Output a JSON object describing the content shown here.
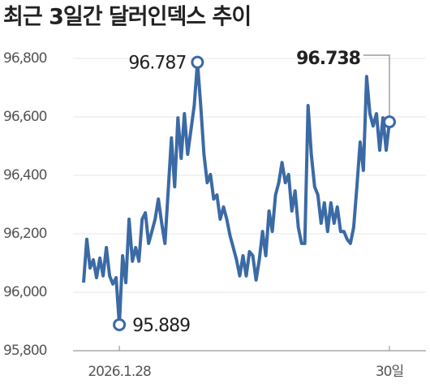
{
  "chart_data": {
    "type": "line",
    "title": "최근 3일간 달러인덱스 추이",
    "categories": [
      null,
      null,
      null,
      null,
      null,
      null,
      null,
      null,
      null,
      null,
      null,
      "2026.1.28",
      null,
      null,
      null,
      null,
      null,
      null,
      null,
      null,
      null,
      null,
      null,
      null,
      null,
      null,
      null,
      null,
      null,
      null,
      null,
      null,
      null,
      null,
      null,
      null,
      null,
      null,
      null,
      null,
      null,
      null,
      null,
      null,
      null,
      null,
      null,
      null,
      null,
      null,
      null,
      null,
      null,
      null,
      null,
      null,
      null,
      null,
      null,
      null,
      null,
      null,
      null,
      null,
      null,
      null,
      null,
      null,
      null,
      null,
      null,
      null,
      null,
      null,
      null,
      null,
      null,
      null,
      null,
      null,
      null,
      null,
      null,
      null,
      null,
      null,
      null,
      null,
      null,
      null,
      null,
      null,
      null,
      null,
      "30일"
    ],
    "series": [
      {
        "color": "#3b6aa5",
        "values": [
          96033,
          96181,
          96083,
          96111,
          96050,
          96117,
          96056,
          96153,
          96056,
          96028,
          96050,
          95889,
          96125,
          96033,
          96250,
          96106,
          96153,
          96106,
          96250,
          96272,
          96167,
          96208,
          96250,
          96319,
          96236,
          96167,
          96347,
          96528,
          96361,
          96597,
          96458,
          96611,
          96472,
          96556,
          96639,
          96787,
          96639,
          96472,
          96375,
          96403,
          96319,
          96333,
          96250,
          96292,
          96250,
          96194,
          96153,
          96111,
          96056,
          96125,
          96056,
          96139,
          96125,
          96042,
          96111,
          96208,
          96125,
          96278,
          96208,
          96333,
          96375,
          96444,
          96375,
          96403,
          96278,
          96347,
          96222,
          96167,
          96167,
          96639,
          96472,
          96361,
          96333,
          96236,
          96306,
          96208,
          96306,
          96236,
          96292,
          96208,
          96208,
          96181,
          96167,
          96222,
          96361,
          96514,
          96417,
          96738,
          96611,
          96569,
          96611,
          96486,
          96597,
          96486,
          96583
        ]
      }
    ],
    "ylim": [
      95800,
      96800
    ],
    "yticks": [
      {
        "value": 95800,
        "label": "95,800"
      },
      {
        "value": 96000,
        "label": "96,000"
      },
      {
        "value": 96200,
        "label": "96,200"
      },
      {
        "value": 96400,
        "label": "96,400"
      },
      {
        "value": 96600,
        "label": "96,600"
      },
      {
        "value": 96800,
        "label": "96,800"
      }
    ],
    "grid": true,
    "annotations": [
      "96.787",
      "95.889",
      "96.738"
    ]
  }
}
